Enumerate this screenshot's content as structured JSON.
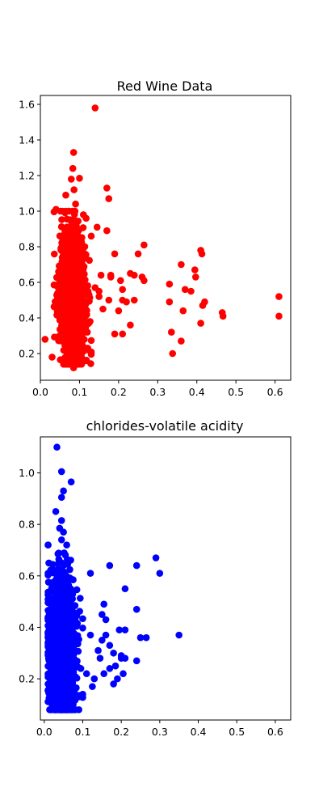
{
  "chart_data": [
    {
      "type": "scatter",
      "title": "Red Wine Data",
      "xlabel": "",
      "ylabel": "",
      "color": "#ff0000",
      "xlim": [
        -0.0,
        0.64
      ],
      "ylim": [
        0.05,
        1.65
      ],
      "xticks": [
        0.0,
        0.1,
        0.2,
        0.3,
        0.4,
        0.5,
        0.6
      ],
      "yticks": [
        0.2,
        0.4,
        0.6,
        0.8,
        1.0,
        1.2,
        1.4,
        1.6
      ],
      "tick_format_x": 1,
      "tick_format_y": 1,
      "grid": false,
      "outliers": [
        [
          0.012,
          0.28
        ],
        [
          0.14,
          1.58
        ],
        [
          0.085,
          1.33
        ],
        [
          0.083,
          1.24
        ],
        [
          0.079,
          1.18
        ],
        [
          0.1,
          1.185
        ],
        [
          0.086,
          1.12
        ],
        [
          0.065,
          1.09
        ],
        [
          0.17,
          1.13
        ],
        [
          0.175,
          1.07
        ],
        [
          0.04,
          1.01
        ],
        [
          0.09,
          1.04
        ],
        [
          0.11,
          0.98
        ],
        [
          0.117,
          0.96
        ],
        [
          0.145,
          0.91
        ],
        [
          0.17,
          0.89
        ],
        [
          0.19,
          0.76
        ],
        [
          0.13,
          0.86
        ],
        [
          0.18,
          0.64
        ],
        [
          0.18,
          0.63
        ],
        [
          0.205,
          0.61
        ],
        [
          0.21,
          0.56
        ],
        [
          0.14,
          0.57
        ],
        [
          0.15,
          0.55
        ],
        [
          0.23,
          0.65
        ],
        [
          0.24,
          0.64
        ],
        [
          0.25,
          0.76
        ],
        [
          0.265,
          0.81
        ],
        [
          0.26,
          0.63
        ],
        [
          0.265,
          0.61
        ],
        [
          0.16,
          0.45
        ],
        [
          0.2,
          0.44
        ],
        [
          0.21,
          0.5
        ],
        [
          0.22,
          0.49
        ],
        [
          0.24,
          0.5
        ],
        [
          0.23,
          0.36
        ],
        [
          0.19,
          0.31
        ],
        [
          0.21,
          0.31
        ],
        [
          0.15,
          0.52
        ],
        [
          0.175,
          0.5
        ],
        [
          0.155,
          0.64
        ],
        [
          0.33,
          0.59
        ],
        [
          0.33,
          0.49
        ],
        [
          0.335,
          0.32
        ],
        [
          0.338,
          0.2
        ],
        [
          0.36,
          0.27
        ],
        [
          0.36,
          0.7
        ],
        [
          0.365,
          0.44
        ],
        [
          0.37,
          0.56
        ],
        [
          0.385,
          0.55
        ],
        [
          0.395,
          0.67
        ],
        [
          0.397,
          0.63
        ],
        [
          0.41,
          0.78
        ],
        [
          0.413,
          0.76
        ],
        [
          0.415,
          0.47
        ],
        [
          0.41,
          0.37
        ],
        [
          0.42,
          0.49
        ],
        [
          0.465,
          0.43
        ],
        [
          0.467,
          0.41
        ],
        [
          0.61,
          0.52
        ],
        [
          0.61,
          0.41
        ],
        [
          0.085,
          0.12
        ],
        [
          0.105,
          0.18
        ],
        [
          0.03,
          0.18
        ],
        [
          0.12,
          0.32
        ],
        [
          0.127,
          0.38
        ]
      ],
      "cluster": {
        "x_mean": 0.082,
        "x_sd": 0.016,
        "x_min": 0.035,
        "x_max": 0.13,
        "y_mean": 0.52,
        "y_sd": 0.18,
        "y_min": 0.14,
        "y_max": 1.0,
        "n": 1400
      }
    },
    {
      "type": "scatter",
      "title": "chlorides-volatile acidity",
      "xlabel": "",
      "ylabel": "",
      "color": "#0000ff",
      "xlim": [
        -0.01,
        0.64
      ],
      "ylim": [
        0.04,
        1.14
      ],
      "xticks": [
        0.0,
        0.1,
        0.2,
        0.3,
        0.4,
        0.5,
        0.6
      ],
      "yticks": [
        0.2,
        0.4,
        0.6,
        0.8,
        1.0
      ],
      "tick_format_x": 1,
      "tick_format_y": 1,
      "grid": false,
      "outliers": [
        [
          0.033,
          1.1
        ],
        [
          0.045,
          1.005
        ],
        [
          0.07,
          0.965
        ],
        [
          0.05,
          0.93
        ],
        [
          0.045,
          0.905
        ],
        [
          0.03,
          0.85
        ],
        [
          0.045,
          0.815
        ],
        [
          0.04,
          0.785
        ],
        [
          0.05,
          0.77
        ],
        [
          0.045,
          0.74
        ],
        [
          0.01,
          0.61
        ],
        [
          0.012,
          0.65
        ],
        [
          0.12,
          0.61
        ],
        [
          0.17,
          0.64
        ],
        [
          0.24,
          0.64
        ],
        [
          0.29,
          0.67
        ],
        [
          0.3,
          0.61
        ],
        [
          0.21,
          0.55
        ],
        [
          0.24,
          0.47
        ],
        [
          0.155,
          0.49
        ],
        [
          0.15,
          0.45
        ],
        [
          0.16,
          0.43
        ],
        [
          0.195,
          0.39
        ],
        [
          0.21,
          0.39
        ],
        [
          0.25,
          0.36
        ],
        [
          0.265,
          0.36
        ],
        [
          0.35,
          0.37
        ],
        [
          0.2,
          0.28
        ],
        [
          0.24,
          0.27
        ],
        [
          0.21,
          0.28
        ],
        [
          0.18,
          0.18
        ],
        [
          0.19,
          0.2
        ],
        [
          0.205,
          0.22
        ],
        [
          0.17,
          0.33
        ],
        [
          0.18,
          0.3
        ],
        [
          0.2,
          0.29
        ],
        [
          0.16,
          0.37
        ],
        [
          0.15,
          0.35
        ],
        [
          0.13,
          0.2
        ],
        [
          0.125,
          0.17
        ],
        [
          0.11,
          0.22
        ],
        [
          0.1,
          0.14
        ],
        [
          0.09,
          0.13
        ],
        [
          0.095,
          0.24
        ],
        [
          0.12,
          0.37
        ],
        [
          0.14,
          0.31
        ],
        [
          0.145,
          0.28
        ],
        [
          0.17,
          0.24
        ],
        [
          0.155,
          0.22
        ],
        [
          0.185,
          0.25
        ],
        [
          0.03,
          0.08
        ],
        [
          0.05,
          0.08
        ],
        [
          0.075,
          0.1
        ],
        [
          0.013,
          0.44
        ]
      ],
      "cluster": {
        "x_mean": 0.045,
        "x_sd": 0.017,
        "x_min": 0.01,
        "x_max": 0.1,
        "y_mean": 0.32,
        "y_sd": 0.14,
        "y_min": 0.08,
        "y_max": 0.72,
        "n": 1600
      }
    }
  ]
}
